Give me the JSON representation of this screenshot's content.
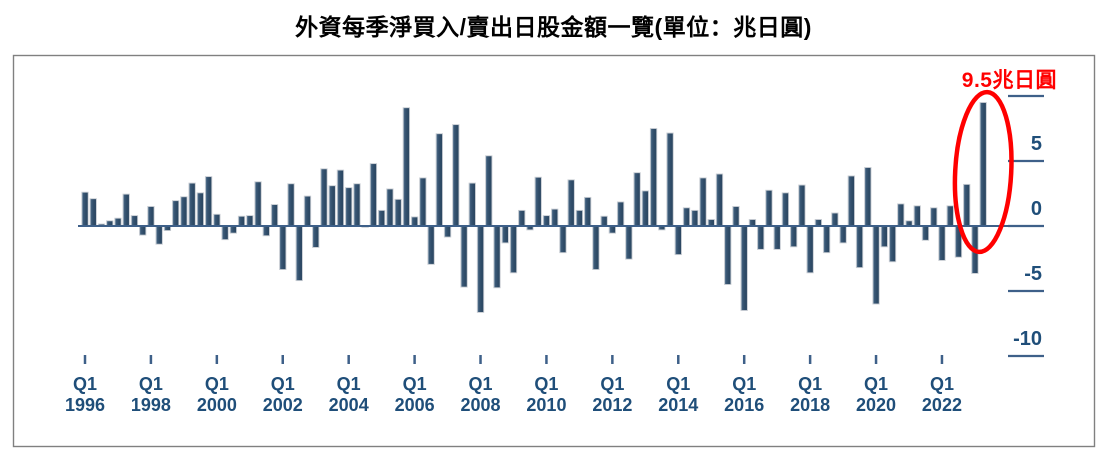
{
  "title": "外資每季淨買入/賣出日股金額一覽(單位：兆日圓)",
  "annotation": {
    "label": "9.5兆日圓",
    "color": "#ff0000"
  },
  "chart_data": {
    "type": "bar",
    "title": "外資每季淨買入/賣出日股金額一覽",
    "unit": "兆日圓",
    "x_start_quarter": "1996Q1",
    "x_end_quarter": "2023Q2",
    "values": [
      2.6,
      2.1,
      0.15,
      0.4,
      0.6,
      2.45,
      0.8,
      -0.7,
      1.5,
      -1.4,
      -0.35,
      1.95,
      2.25,
      3.3,
      2.55,
      3.8,
      0.9,
      -1.05,
      -0.55,
      0.75,
      0.8,
      3.4,
      -0.75,
      1.65,
      -3.35,
      3.25,
      -4.2,
      2.3,
      -1.65,
      4.4,
      3.1,
      4.3,
      2.95,
      3.25,
      -0.1,
      4.8,
      1.2,
      2.85,
      2.05,
      9.1,
      0.7,
      3.7,
      -2.95,
      7.1,
      -0.85,
      7.8,
      -4.7,
      3.3,
      -6.65,
      5.4,
      -4.75,
      -1.3,
      -3.6,
      1.2,
      -0.3,
      3.75,
      0.8,
      1.3,
      -2.05,
      3.55,
      1.2,
      2.2,
      -3.35,
      0.75,
      -0.55,
      1.85,
      -2.55,
      4.1,
      2.7,
      7.5,
      -0.3,
      7.15,
      -2.2,
      1.4,
      1.2,
      3.7,
      0.5,
      4.0,
      -4.5,
      1.5,
      -6.5,
      0.5,
      -1.8,
      2.75,
      -1.8,
      2.55,
      -1.6,
      3.15,
      -3.6,
      0.5,
      -2.05,
      1.0,
      -1.3,
      3.85,
      -3.2,
      4.5,
      -6.0,
      -1.6,
      -2.75,
      1.7,
      0.4,
      1.55,
      -1.1,
      1.4,
      -2.65,
      1.55,
      -2.4,
      3.2,
      -3.65,
      9.5
    ],
    "highlighted_last_value": 9.5,
    "x_ticks": [
      {
        "q": "Q1",
        "year": "1996"
      },
      {
        "q": "Q1",
        "year": "1998"
      },
      {
        "q": "Q1",
        "year": "2000"
      },
      {
        "q": "Q1",
        "year": "2002"
      },
      {
        "q": "Q1",
        "year": "2004"
      },
      {
        "q": "Q1",
        "year": "2006"
      },
      {
        "q": "Q1",
        "year": "2008"
      },
      {
        "q": "Q1",
        "year": "2010"
      },
      {
        "q": "Q1",
        "year": "2012"
      },
      {
        "q": "Q1",
        "year": "2014"
      },
      {
        "q": "Q1",
        "year": "2016"
      },
      {
        "q": "Q1",
        "year": "2018"
      },
      {
        "q": "Q1",
        "year": "2020"
      },
      {
        "q": "Q1",
        "year": "2022"
      }
    ],
    "y_ticks": [
      {
        "value": 10,
        "label": ""
      },
      {
        "value": 5,
        "label": "5"
      },
      {
        "value": 0,
        "label": "0"
      },
      {
        "value": -5,
        "label": "-5"
      },
      {
        "value": -10,
        "label": "-10"
      }
    ],
    "ylim": [
      -10.5,
      13
    ],
    "grid": "off",
    "legend": "none",
    "colors": {
      "bar": "#33506c",
      "bar_highlight_edge": "#7e99af",
      "bar_outline": "#c8cdd3",
      "axis": "#3e6089",
      "tick_label": "#1f4e79",
      "frame": "#808080",
      "annotation_red": "#ff0000",
      "title_text": "#000000"
    }
  }
}
